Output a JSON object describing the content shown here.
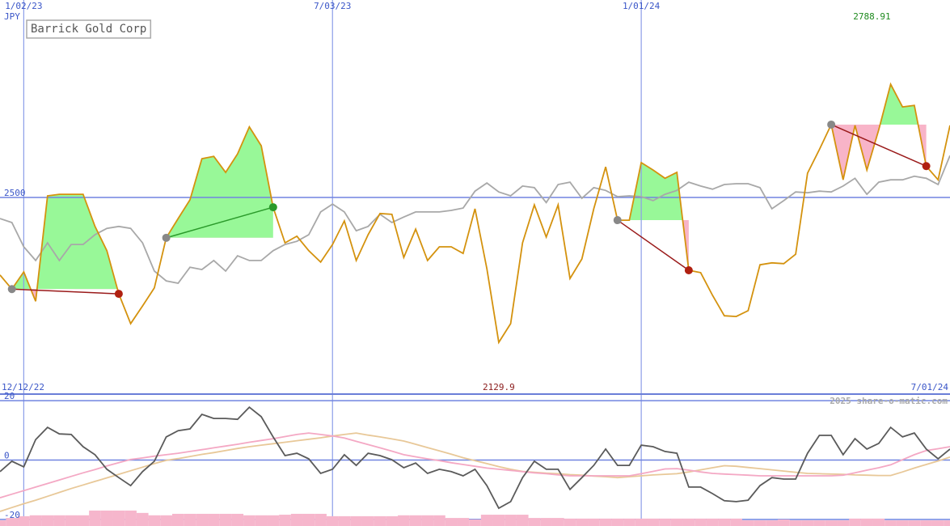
{
  "chart_data": [
    {
      "type": "line",
      "title": "Barrick Gold Corp",
      "unit_label": "JPY",
      "categories": [
        "12/12/22",
        null,
        "1/02/23",
        null,
        null,
        null,
        null,
        null,
        null,
        null,
        null,
        null,
        null,
        null,
        null,
        null,
        null,
        null,
        null,
        null,
        null,
        null,
        null,
        null,
        null,
        null,
        null,
        null,
        "7/03/23",
        null,
        null,
        null,
        null,
        null,
        null,
        null,
        null,
        null,
        null,
        null,
        null,
        null,
        null,
        null,
        null,
        null,
        null,
        null,
        null,
        null,
        null,
        null,
        null,
        null,
        "1/01/24",
        null,
        null,
        null,
        null,
        null,
        null,
        null,
        null,
        null,
        null,
        null,
        null,
        null,
        null,
        null,
        null,
        null,
        null,
        null,
        null,
        null,
        null,
        null,
        null,
        null,
        "7/01/24"
      ],
      "ylim": [
        1998,
        3004
      ],
      "yticks": [
        2500
      ],
      "grid": true,
      "high": 2788.91,
      "low": 2129.9,
      "series": [
        {
          "color": "#a8a8a8",
          "values": [
            2446,
            2436,
            2374,
            2339,
            2384,
            2339,
            2380,
            2380,
            2405,
            2421,
            2426,
            2421,
            2384,
            2312,
            2287,
            2281,
            2322,
            2316,
            2339,
            2312,
            2351,
            2339,
            2339,
            2364,
            2380,
            2388,
            2405,
            2463,
            2483,
            2463,
            2415,
            2426,
            2457,
            2436,
            2450,
            2463,
            2463,
            2463,
            2467,
            2473,
            2516,
            2537,
            2514,
            2504,
            2529,
            2525,
            2487,
            2533,
            2539,
            2498,
            2525,
            2518,
            2502,
            2504,
            2502,
            2492,
            2508,
            2518,
            2539,
            2529,
            2521,
            2533,
            2535,
            2535,
            2525,
            2471,
            2492,
            2514,
            2512,
            2516,
            2514,
            2529,
            2549,
            2508,
            2539,
            2545,
            2545,
            2554,
            2549,
            2533,
            2607
          ]
        },
        {
          "color": "#d4920e",
          "values": [
            2302,
            2266,
            2310,
            2235,
            2504,
            2508,
            2508,
            2508,
            2426,
            2364,
            2254,
            2178,
            2223,
            2269,
            2397,
            2446,
            2494,
            2599,
            2605,
            2564,
            2611,
            2680,
            2632,
            2475,
            2384,
            2401,
            2364,
            2335,
            2380,
            2440,
            2339,
            2405,
            2459,
            2457,
            2347,
            2419,
            2339,
            2374,
            2374,
            2357,
            2471,
            2318,
            2129.9,
            2178,
            2384,
            2481,
            2399,
            2481,
            2293,
            2343,
            2471,
            2578,
            2442,
            2442,
            2589,
            2570,
            2549,
            2564,
            2314,
            2308,
            2250,
            2198,
            2196,
            2211,
            2328,
            2333,
            2331,
            2355,
            2562,
            2622,
            2686,
            2545,
            2684,
            2570,
            2673,
            2788.91,
            2731,
            2735,
            2580,
            2545,
            2684
          ],
          "trades": [
            {
              "from": 1,
              "to": 10
            },
            {
              "from": 14,
              "to": 23
            },
            {
              "from": 52,
              "to": 58
            },
            {
              "from": 70,
              "to": 78
            }
          ]
        }
      ]
    },
    {
      "type": "line",
      "ylim": [
        -22.2,
        22.2
      ],
      "yticks": [
        20,
        0,
        -20
      ],
      "grid": true,
      "credit": "2025 share-o-matic.com",
      "series": [
        {
          "type": "bar",
          "color": "#f6b6cc",
          "values": [
            -20.3,
            -19.5,
            -18.9,
            -18.6,
            -18.6,
            -18.6,
            -18.6,
            -18.6,
            -17.0,
            -17.0,
            -17.0,
            -17.0,
            -17.8,
            -18.6,
            -18.6,
            -18.1,
            -18.1,
            -18.1,
            -18.1,
            -18.1,
            -18.1,
            -18.6,
            -18.6,
            -18.6,
            -18.4,
            -18.1,
            -18.1,
            -18.1,
            -18.9,
            -18.9,
            -18.9,
            -18.9,
            -18.9,
            -18.9,
            -18.6,
            -18.6,
            -18.6,
            -18.6,
            -19.5,
            -19.5,
            -20.0,
            -18.4,
            -18.4,
            -18.4,
            -18.4,
            -19.5,
            -19.5,
            -19.5,
            -19.7,
            -19.7,
            -19.7,
            -19.7,
            -19.7,
            -19.7,
            -19.7,
            -19.7,
            -19.7,
            -19.7,
            -19.7,
            -19.7,
            -19.7,
            -19.7,
            -19.7,
            -20.3,
            -20.3,
            -20.3,
            -20.0,
            -20.3,
            -20.3,
            -20.3,
            -20.3,
            -20.3,
            -19.7,
            -19.7,
            -19.7,
            -20.3,
            -20.3,
            -20.3,
            -20.3,
            -20.3,
            -20.3
          ]
        },
        {
          "color": "#e8c898",
          "values": [
            -17.3,
            -16.0,
            -14.7,
            -13.5,
            -12.2,
            -10.9,
            -9.6,
            -8.4,
            -7.2,
            -6.0,
            -4.8,
            -3.6,
            -2.4,
            -1.2,
            -0.1,
            0.5,
            1.2,
            1.9,
            2.5,
            3.2,
            3.9,
            4.5,
            5.0,
            5.5,
            6.0,
            6.5,
            7.0,
            7.5,
            8.1,
            8.6,
            9.1,
            8.4,
            7.8,
            7.1,
            6.4,
            5.3,
            4.2,
            3.1,
            2.0,
            0.8,
            -0.2,
            -1.2,
            -2.2,
            -3.1,
            -3.8,
            -4.1,
            -4.4,
            -4.6,
            -4.9,
            -5.1,
            -5.4,
            -5.6,
            -5.9,
            -5.6,
            -5.3,
            -5.0,
            -4.8,
            -4.6,
            -4.0,
            -3.3,
            -2.6,
            -1.9,
            -2.1,
            -2.5,
            -2.9,
            -3.3,
            -3.7,
            -4.1,
            -4.5,
            -4.6,
            -4.7,
            -4.8,
            -5.0,
            -5.1,
            -5.2,
            -5.2,
            -4.0,
            -2.7,
            -1.5,
            -0.3,
            1.0
          ]
        },
        {
          "color": "#f4a8c4",
          "values": [
            -12.7,
            -11.5,
            -10.3,
            -9.1,
            -7.9,
            -6.7,
            -5.5,
            -4.3,
            -3.2,
            -2.0,
            -0.9,
            0.2,
            0.7,
            1.3,
            1.8,
            2.3,
            2.9,
            3.5,
            4.1,
            4.7,
            5.3,
            6.0,
            6.6,
            7.2,
            7.9,
            8.6,
            9.1,
            8.6,
            8.1,
            7.4,
            6.3,
            5.2,
            4.1,
            3.0,
            1.8,
            1.1,
            0.4,
            -0.2,
            -0.9,
            -1.5,
            -2.1,
            -2.7,
            -3.1,
            -3.5,
            -3.9,
            -4.3,
            -4.6,
            -5.0,
            -5.3,
            -5.3,
            -5.3,
            -5.3,
            -5.3,
            -5.3,
            -4.6,
            -3.8,
            -3.0,
            -2.9,
            -3.4,
            -4.0,
            -4.5,
            -4.7,
            -4.9,
            -5.1,
            -5.3,
            -5.3,
            -5.3,
            -5.3,
            -5.3,
            -5.3,
            -5.3,
            -5.1,
            -4.3,
            -3.4,
            -2.6,
            -1.6,
            0.1,
            1.8,
            3.2,
            3.8,
            4.5
          ]
        },
        {
          "color": "#5a5a5a",
          "values": [
            -3.9,
            -0.4,
            -2.3,
            6.9,
            11.0,
            8.8,
            8.6,
            4.5,
            1.8,
            -3.1,
            -5.9,
            -8.6,
            -3.9,
            -0.4,
            7.8,
            9.9,
            10.5,
            15.4,
            14.0,
            14.0,
            13.7,
            17.8,
            14.6,
            7.8,
            1.5,
            2.3,
            0.4,
            -4.5,
            -3.1,
            1.8,
            -1.8,
            2.3,
            1.5,
            0.1,
            -2.6,
            -1.0,
            -4.5,
            -3.1,
            -3.9,
            -5.3,
            -3.1,
            -8.6,
            -16.2,
            -14.0,
            -5.9,
            -0.4,
            -3.1,
            -3.1,
            -9.9,
            -5.9,
            -1.8,
            3.7,
            -1.8,
            -1.8,
            5.0,
            4.5,
            2.9,
            2.3,
            -9.1,
            -9.1,
            -11.3,
            -13.7,
            -14.0,
            -13.5,
            -8.6,
            -5.9,
            -6.4,
            -6.4,
            2.3,
            8.3,
            8.3,
            1.8,
            7.2,
            3.7,
            5.6,
            11.0,
            7.8,
            9.1,
            3.7,
            0.4,
            3.7
          ]
        }
      ]
    }
  ]
}
